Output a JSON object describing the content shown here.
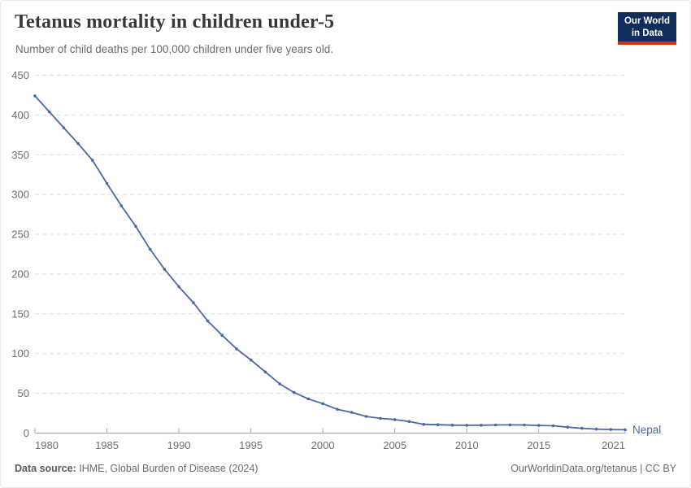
{
  "header": {
    "title": "Tetanus mortality in children under-5",
    "subtitle": "Number of child deaths per 100,000 children under five years old.",
    "logo": {
      "line1": "Our World",
      "line2": "in Data"
    }
  },
  "chart_data": {
    "type": "line",
    "title": "Tetanus mortality in children under-5",
    "xlabel": "",
    "ylabel": "",
    "xlim": [
      1980,
      2021
    ],
    "ylim": [
      0,
      450
    ],
    "grid": "horizontal-dashed",
    "legend_position": "end-of-line",
    "x_ticks": [
      1980,
      1985,
      1990,
      1995,
      2000,
      2005,
      2010,
      2015,
      2021
    ],
    "y_ticks": [
      0,
      50,
      100,
      150,
      200,
      250,
      300,
      350,
      400,
      450
    ],
    "series": [
      {
        "name": "Nepal",
        "color": "#4B69A5",
        "x": [
          1980,
          1981,
          1982,
          1983,
          1984,
          1985,
          1986,
          1987,
          1988,
          1989,
          1990,
          1991,
          1992,
          1993,
          1994,
          1995,
          1996,
          1997,
          1998,
          1999,
          2000,
          2001,
          2002,
          2003,
          2004,
          2005,
          2006,
          2007,
          2008,
          2009,
          2010,
          2011,
          2012,
          2013,
          2014,
          2015,
          2016,
          2017,
          2018,
          2019,
          2020,
          2021
        ],
        "values": [
          424,
          404,
          384,
          364,
          343,
          314,
          286,
          260,
          231,
          206,
          184,
          164,
          141,
          123,
          106,
          92,
          77,
          62,
          51,
          43,
          37,
          30,
          26,
          21,
          18.5,
          17,
          14.5,
          11,
          10.5,
          10,
          9.8,
          9.9,
          10.2,
          10.3,
          10.2,
          9.6,
          9.2,
          7.5,
          6,
          5,
          4.5,
          4.2
        ]
      }
    ]
  },
  "footer": {
    "source_label": "Data source:",
    "source_value": "IHME, Global Burden of Disease (2024)",
    "attribution": "OurWorldinData.org/tetanus | CC BY"
  },
  "colors": {
    "line": "#4B69A5",
    "logo_bg": "#102D5C",
    "logo_red": "#C9331F",
    "gridline": "#dedede",
    "axis": "#a6a6a6"
  }
}
